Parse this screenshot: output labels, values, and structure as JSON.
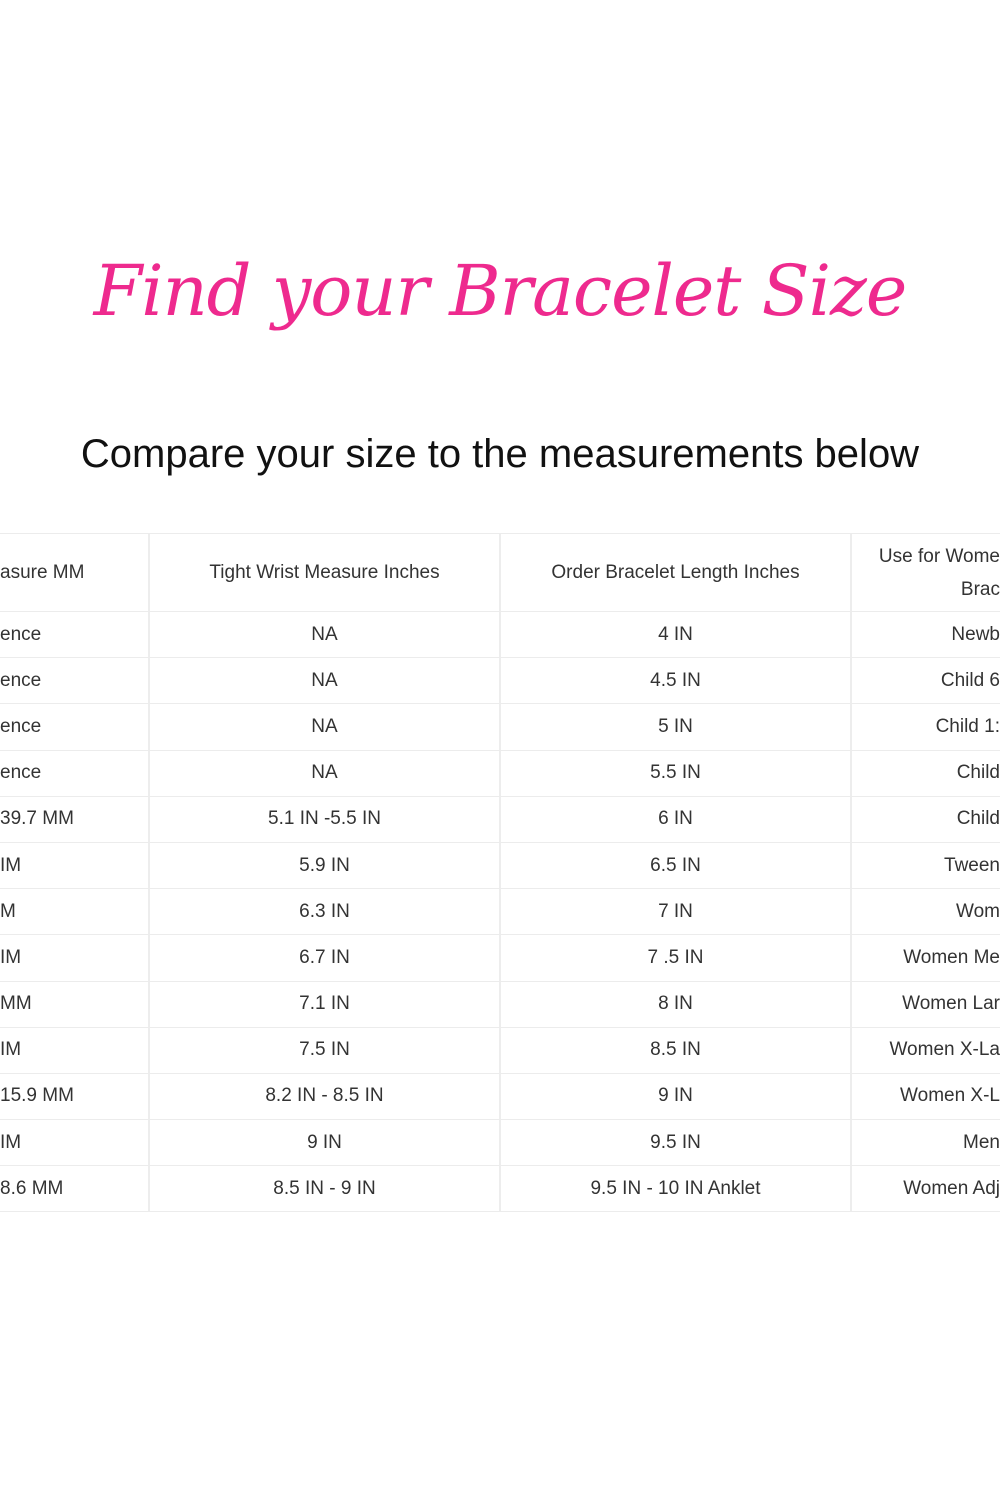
{
  "title": "Find your Bracelet Size",
  "subtitle": "Compare your size to the measurements below",
  "table": {
    "headers": [
      "asure MM",
      "Tight Wrist Measure Inches",
      "Order Bracelet Length Inches",
      "Use for Wome",
      "Brac"
    ],
    "rows": [
      [
        "ence",
        "NA",
        "4 IN",
        "Newb"
      ],
      [
        "ence",
        "NA",
        "4.5 IN",
        "Child 6"
      ],
      [
        "ence",
        "NA",
        "5 IN",
        "Child 1:"
      ],
      [
        "ence",
        "NA",
        "5.5 IN",
        "Child"
      ],
      [
        "39.7 MM",
        "5.1 IN -5.5 IN",
        "6 IN",
        "Child"
      ],
      [
        "IM",
        "5.9 IN",
        "6.5 IN",
        "Tween"
      ],
      [
        "M",
        "6.3 IN",
        "7 IN",
        "Wom"
      ],
      [
        "IM",
        "6.7 IN",
        "7 .5 IN",
        "Women Me"
      ],
      [
        "MM",
        "7.1 IN",
        "8 IN",
        "Women Lar"
      ],
      [
        "IM",
        "7.5 IN",
        "8.5 IN",
        "Women X-La"
      ],
      [
        "15.9 MM",
        "8.2 IN - 8.5 IN",
        "9 IN",
        "Women X-L"
      ],
      [
        "IM",
        "9 IN",
        "9.5 IN",
        "Men"
      ],
      [
        "8.6 MM",
        "8.5 IN - 9 IN",
        "9.5 IN - 10 IN Anklet",
        "Women Adj"
      ]
    ]
  }
}
